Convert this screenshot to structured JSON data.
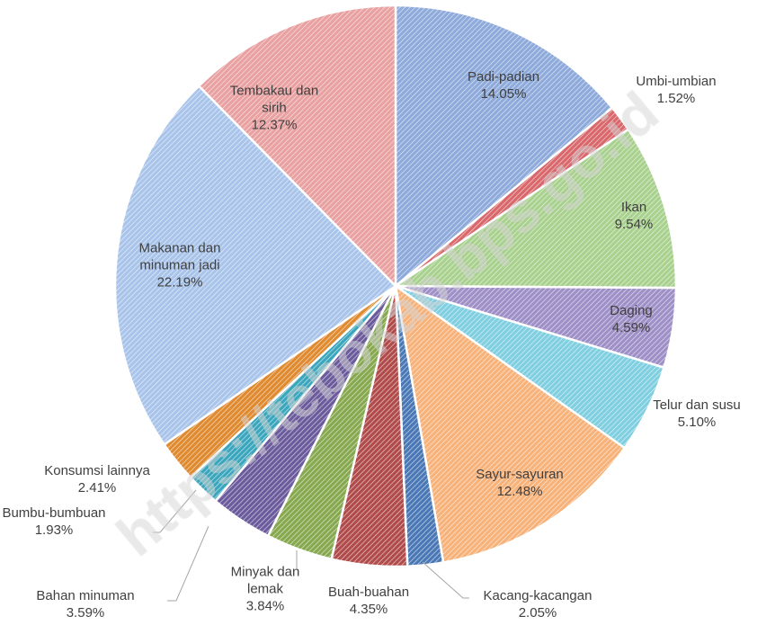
{
  "chart_data": {
    "type": "pie",
    "categories": [
      "Padi-padian",
      "Umbi-umbian",
      "Ikan",
      "Daging",
      "Telur dan susu",
      "Sayur-sayuran",
      "Kacang-kacangan",
      "Buah-buahan",
      "Minyak dan lemak",
      "Bahan minuman",
      "Bumbu-bumbuan",
      "Konsumsi lainnya",
      "Makanan dan minuman jadi",
      "Tembakau dan sirih"
    ],
    "values": [
      14.05,
      1.52,
      9.54,
      4.59,
      5.1,
      12.48,
      2.05,
      4.35,
      3.84,
      3.59,
      1.93,
      2.41,
      22.19,
      12.37
    ],
    "value_labels": [
      "14.05%",
      "1.52%",
      "9.54%",
      "4.59%",
      "5.10%",
      "12.48%",
      "2.05%",
      "4.35%",
      "3.84%",
      "3.59%",
      "1.93%",
      "2.41%",
      "22.19%",
      "12.37%"
    ],
    "colors": [
      "#8eaadb",
      "#d9676b",
      "#a9d18e",
      "#9e8fc7",
      "#7fcfe0",
      "#f7b27a",
      "#4a78b6",
      "#b14b4b",
      "#86a84e",
      "#6b5b9c",
      "#3aa6bd",
      "#e08a30",
      "#a9c4ea",
      "#e9a0a0"
    ],
    "watermark": "https://tebokab.bps.go.id"
  }
}
